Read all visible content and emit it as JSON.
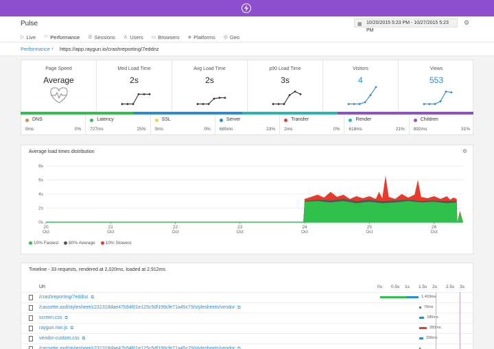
{
  "app": {
    "title": "Pulse"
  },
  "nav": [
    {
      "label": "Live",
      "icon": "live-icon",
      "glyph": "▷",
      "active": false
    },
    {
      "label": "Performance",
      "icon": "performance-icon",
      "glyph": "◠",
      "active": true
    },
    {
      "label": "Sessions",
      "icon": "sessions-icon",
      "glyph": "☰",
      "active": false
    },
    {
      "label": "Users",
      "icon": "users-icon",
      "glyph": "♙",
      "active": false
    },
    {
      "label": "Browsers",
      "icon": "browsers-icon",
      "glyph": "▭",
      "active": false
    },
    {
      "label": "Platforms",
      "icon": "platforms-icon",
      "glyph": "◈",
      "active": false
    },
    {
      "label": "Geo",
      "icon": "geo-icon",
      "glyph": "◎",
      "active": false
    }
  ],
  "date_range": "10/20/2015 5:23 PM - 10/27/2015 5:23 PM",
  "breadcrumb": {
    "link": "Performance",
    "url": "https://app.raygun.io/crashreporting/7eddnz"
  },
  "metrics": [
    {
      "label": "Page Speed",
      "value": "Average",
      "kind": "heart"
    },
    {
      "label": "Med Load Time",
      "value": "2s",
      "spark": [
        0.05,
        0.05,
        0.05,
        0.6,
        0.6,
        0.6
      ],
      "color": "#333333"
    },
    {
      "label": "Avg Load Time",
      "value": "2s",
      "spark": [
        0.05,
        0.05,
        0.05,
        0.35,
        0.4,
        0.4
      ],
      "color": "#333333"
    },
    {
      "label": "p90 Load Time",
      "value": "3s",
      "spark": [
        0.05,
        0.05,
        0.05,
        0.55,
        0.75,
        0.6
      ],
      "color": "#333333"
    },
    {
      "label": "Visitors",
      "value": "4",
      "spark": [
        0.05,
        0.05,
        0.05,
        0.15,
        0.55,
        1.0
      ],
      "color": "#2b8ad6",
      "blue": true
    },
    {
      "label": "Views",
      "value": "553",
      "spark": [
        0.05,
        0.05,
        0.05,
        0.2,
        0.75,
        0.7
      ],
      "color": "#2b8ad6",
      "blue": true
    }
  ],
  "segments": [
    {
      "name": "DNS",
      "ms": "9ms",
      "pct": "0%",
      "color": "#f07d3a"
    },
    {
      "name": "Latency",
      "ms": "727ms",
      "pct": "25%",
      "color": "#2fc04b"
    },
    {
      "name": "SSL",
      "ms": "0ms",
      "pct": "0%",
      "color": "#f0d23a"
    },
    {
      "name": "Server",
      "ms": "665ms",
      "pct": "23%",
      "color": "#2b8ad6"
    },
    {
      "name": "Transfer",
      "ms": "2ms",
      "pct": "0%",
      "color": "#e8392b"
    },
    {
      "name": "Render",
      "ms": "618ms",
      "pct": "21%",
      "color": "#27b7b0"
    },
    {
      "name": "Children",
      "ms": "892ms",
      "pct": "31%",
      "color": "#8e4fcf"
    }
  ],
  "bar_colors": [
    {
      "color": "#2fc04b",
      "fraction": 0.25
    },
    {
      "color": "#2b8ad6",
      "fraction": 0.24
    },
    {
      "color": "#27b7b0",
      "fraction": 0.21
    },
    {
      "color": "#8e4fcf",
      "fraction": 0.3
    }
  ],
  "distribution": {
    "title": "Average load times distribution",
    "legend": [
      {
        "label": "10% Fastest",
        "color": "#2fc04b"
      },
      {
        "label": "80% Average",
        "color": "#555555"
      },
      {
        "label": "10% Slowest",
        "color": "#e8392b"
      }
    ]
  },
  "chart_data": {
    "type": "area",
    "title": "Average load times distribution",
    "xlabel": "",
    "ylabel": "",
    "ylim": [
      0,
      8
    ],
    "y_ticks": [
      "0s",
      "2s",
      "4s",
      "6s",
      "8s"
    ],
    "x_ticks": [
      {
        "day": "20",
        "month": "Oct",
        "t": 0
      },
      {
        "day": "21",
        "month": "Oct",
        "t": 1
      },
      {
        "day": "22",
        "month": "Oct",
        "t": 2
      },
      {
        "day": "23",
        "month": "Oct",
        "t": 3
      },
      {
        "day": "24",
        "month": "Oct",
        "t": 4
      },
      {
        "day": "25",
        "month": "Oct",
        "t": 5
      },
      {
        "day": "26",
        "month": "Oct",
        "t": 6
      }
    ],
    "t_max": 6.45,
    "series": [
      {
        "name": "10% Slowest",
        "color": "#e8392b",
        "points": [
          [
            0,
            0
          ],
          [
            3.98,
            0
          ],
          [
            4.0,
            3.3
          ],
          [
            4.1,
            3.6
          ],
          [
            4.2,
            3.9
          ],
          [
            4.3,
            3.5
          ],
          [
            4.4,
            4.3
          ],
          [
            4.5,
            3.6
          ],
          [
            4.6,
            3.9
          ],
          [
            4.7,
            3.3
          ],
          [
            4.8,
            3.7
          ],
          [
            4.9,
            3.4
          ],
          [
            5.0,
            3.7
          ],
          [
            5.05,
            3.5
          ],
          [
            5.1,
            3.3
          ],
          [
            5.15,
            4.3
          ],
          [
            5.2,
            3.4
          ],
          [
            5.25,
            6.6
          ],
          [
            5.3,
            3.6
          ],
          [
            5.4,
            3.3
          ],
          [
            5.5,
            4.0
          ],
          [
            5.6,
            3.5
          ],
          [
            5.7,
            3.9
          ],
          [
            5.75,
            6.0
          ],
          [
            5.8,
            3.6
          ],
          [
            5.9,
            3.4
          ],
          [
            6.0,
            3.7
          ],
          [
            6.1,
            3.3
          ],
          [
            6.2,
            3.7
          ],
          [
            6.25,
            3.2
          ],
          [
            6.3,
            3.5
          ],
          [
            6.35,
            3.3
          ],
          [
            6.36,
            0
          ],
          [
            6.4,
            1.6
          ],
          [
            6.45,
            0
          ]
        ]
      },
      {
        "name": "80% Average",
        "color": "#555555",
        "points": [
          [
            0,
            0
          ],
          [
            3.98,
            0
          ],
          [
            4.0,
            3.0
          ],
          [
            4.2,
            3.2
          ],
          [
            4.4,
            3.1
          ],
          [
            4.6,
            3.3
          ],
          [
            4.8,
            3.0
          ],
          [
            5.0,
            3.2
          ],
          [
            5.2,
            3.0
          ],
          [
            5.4,
            3.1
          ],
          [
            5.6,
            3.2
          ],
          [
            5.8,
            3.0
          ],
          [
            6.0,
            3.1
          ],
          [
            6.2,
            3.0
          ],
          [
            6.35,
            3.0
          ],
          [
            6.36,
            0
          ],
          [
            6.4,
            1.4
          ],
          [
            6.45,
            0
          ]
        ]
      },
      {
        "name": "10% Fastest",
        "color": "#2fc04b",
        "points": [
          [
            0,
            0
          ],
          [
            3.98,
            0
          ],
          [
            4.0,
            2.9
          ],
          [
            4.2,
            3.0
          ],
          [
            4.4,
            2.8
          ],
          [
            4.6,
            3.0
          ],
          [
            4.8,
            2.7
          ],
          [
            5.0,
            2.9
          ],
          [
            5.2,
            2.7
          ],
          [
            5.4,
            2.8
          ],
          [
            5.6,
            3.0
          ],
          [
            5.8,
            2.8
          ],
          [
            6.0,
            2.9
          ],
          [
            6.2,
            2.7
          ],
          [
            6.35,
            2.8
          ],
          [
            6.36,
            0
          ],
          [
            6.4,
            1.3
          ],
          [
            6.45,
            0
          ]
        ]
      }
    ]
  },
  "timeline": {
    "title": "Timeline - 33 requests, rendered at 2,020ms, loaded at 2,912ms",
    "col_uri": "Uri",
    "ticks": [
      "0s",
      "0.5s",
      "1s",
      "1.5s",
      "2s",
      "2.5s",
      "3s"
    ],
    "rows": [
      {
        "uri": "/crashreporting/7eddnz",
        "ms": "1,403ms",
        "start": 0.0,
        "dur": 1.403,
        "split": 0.7
      },
      {
        "uri": "/cassette.axd/stylesheet/c231318dae47b94f01e125c5df199cfe71a45c79/stylesheets/vendor",
        "ms": "79ms",
        "start": 1.42,
        "dur": 0.079
      },
      {
        "uri": "screen.css",
        "ms": "185ms",
        "start": 1.42,
        "dur": 0.185
      },
      {
        "uri": "raygun.min.js",
        "ms": "283ms",
        "start": 1.42,
        "dur": 0.283,
        "red": true
      },
      {
        "uri": "vendor-custom.css",
        "ms": "156ms",
        "start": 1.42,
        "dur": 0.156
      },
      {
        "uri": "/cassette.axd/stylesheet/c231318dae47b94f01e125c5df199cfe71a45c79/stylesheets/vendor",
        "ms": "",
        "start": 1.42,
        "dur": 0.05
      }
    ]
  }
}
